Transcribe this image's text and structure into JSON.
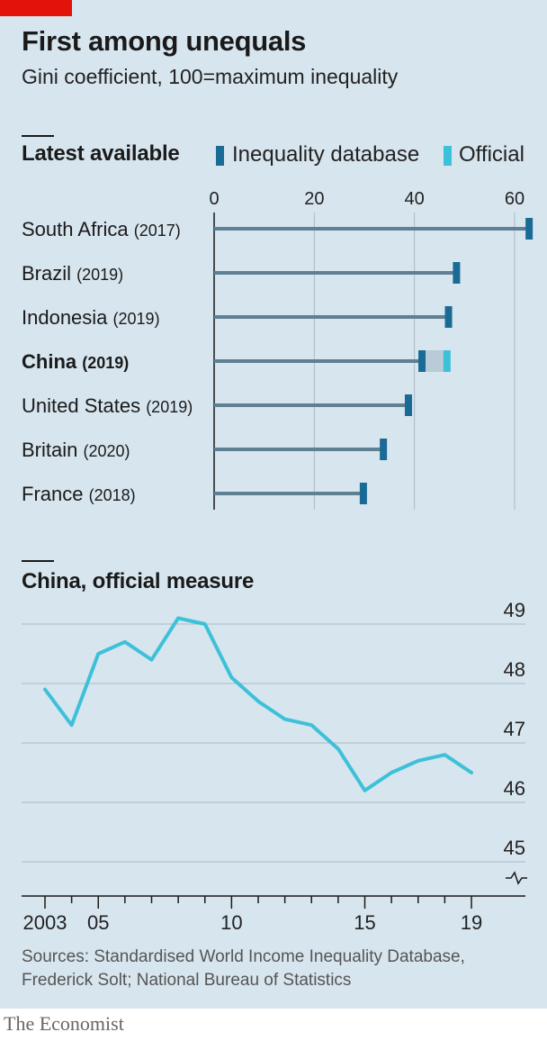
{
  "title": "First among unequals",
  "subtitle": "Gini coefficient, 100=maximum inequality",
  "colors": {
    "background": "#d7e5ee",
    "database": "#1a6a96",
    "official": "#3dc1d8",
    "bar_line": "#5f7f93",
    "range_fill": "#b9cbd6",
    "grid": "#aab9c4",
    "accent_red": "#e3120b"
  },
  "top_chart": {
    "section_title": "Latest available",
    "legend": [
      {
        "label": "Inequality database",
        "color": "#1a6a96"
      },
      {
        "label": "Official",
        "color": "#3dc1d8"
      }
    ]
  },
  "bottom_chart": {
    "section_title": "China, official measure"
  },
  "chart_data": [
    {
      "type": "bar",
      "orientation": "horizontal",
      "title": "Latest available",
      "categories": [
        {
          "name": "South Africa",
          "year": "(2017)",
          "bold": false
        },
        {
          "name": "Brazil",
          "year": "(2019)",
          "bold": false
        },
        {
          "name": "Indonesia",
          "year": "(2019)",
          "bold": false
        },
        {
          "name": "China",
          "year": "(2019)",
          "bold": true
        },
        {
          "name": "United States",
          "year": "(2019)",
          "bold": false
        },
        {
          "name": "Britain",
          "year": "(2020)",
          "bold": false
        },
        {
          "name": "France",
          "year": "(2018)",
          "bold": false
        }
      ],
      "series": [
        {
          "name": "Inequality database",
          "values": [
            62.9,
            48.4,
            46.8,
            41.5,
            38.8,
            33.8,
            29.8
          ]
        },
        {
          "name": "Official",
          "values": [
            null,
            null,
            null,
            46.5,
            null,
            null,
            null
          ]
        }
      ],
      "xlim": [
        0,
        63
      ],
      "xticks": [
        0,
        20,
        40,
        60
      ],
      "tick_labels": [
        "0",
        "20",
        "40",
        "60"
      ],
      "grid": true,
      "legend_position": "top"
    },
    {
      "type": "line",
      "title": "China, official measure",
      "x": [
        2003,
        2004,
        2005,
        2006,
        2007,
        2008,
        2009,
        2010,
        2011,
        2012,
        2013,
        2014,
        2015,
        2016,
        2017,
        2018,
        2019
      ],
      "series": [
        {
          "values": [
            47.9,
            47.3,
            48.5,
            48.7,
            48.4,
            49.1,
            49.0,
            48.1,
            47.7,
            47.4,
            47.3,
            46.9,
            46.2,
            46.5,
            46.7,
            46.8,
            46.5
          ]
        }
      ],
      "xticks": [
        2003,
        2005,
        2010,
        2015,
        2019
      ],
      "x_tick_labels": [
        "2003",
        "05",
        "10",
        "15",
        "19"
      ],
      "ylim": [
        45,
        49
      ],
      "yticks": [
        45,
        46,
        47,
        48,
        49
      ],
      "y_tick_labels": [
        "45",
        "46",
        "47",
        "48",
        "49"
      ],
      "y_axis_break": true,
      "y_axis_position": "right",
      "grid": true
    }
  ],
  "sources": "Sources: Standardised World Income Inequality Database, Frederick Solt; National Bureau of Statistics",
  "brand": "The Economist"
}
